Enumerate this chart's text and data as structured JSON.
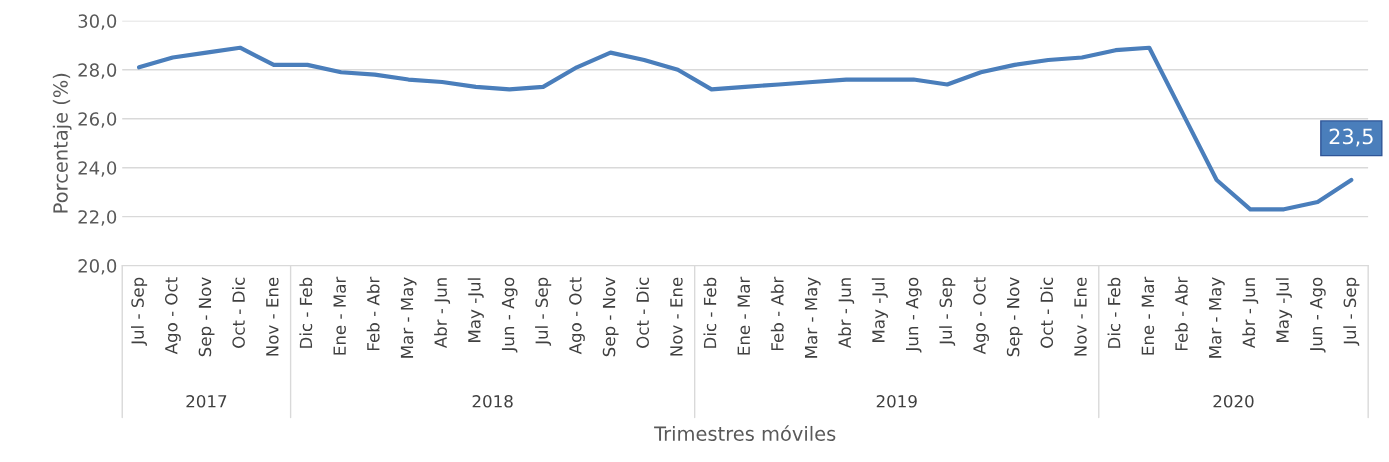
{
  "chart_data": {
    "type": "line",
    "xlabel": "Trimestres móviles",
    "ylabel": "Porcentaje (%)",
    "categories": [
      "Jul - Sep",
      "Ago - Oct",
      "Sep - Nov",
      "Oct - Dic",
      "Nov - Ene",
      "Dic - Feb",
      "Ene - Mar",
      "Feb - Abr",
      "Mar - May",
      "Abr - Jun",
      "May -Jul",
      "Jun - Ago",
      "Jul - Sep",
      "Ago - Oct",
      "Sep - Nov",
      "Oct - Dic",
      "Nov - Ene",
      "Dic - Feb",
      "Ene - Mar",
      "Feb - Abr",
      "Mar - May",
      "Abr - Jun",
      "May -Jul",
      "Jun - Ago",
      "Jul - Sep",
      "Ago - Oct",
      "Sep - Nov",
      "Oct - Dic",
      "Nov - Ene",
      "Dic - Feb",
      "Ene - Mar",
      "Feb - Abr",
      "Mar - May",
      "Abr - Jun",
      "May -Jul",
      "Jun - Ago",
      "Jul - Sep"
    ],
    "series": [
      {
        "color": "#4a7ebb",
        "values": [
          28.1,
          28.5,
          28.7,
          28.9,
          28.2,
          28.2,
          27.9,
          27.8,
          27.6,
          27.5,
          27.3,
          27.2,
          27.3,
          28.1,
          28.7,
          28.4,
          28.0,
          27.2,
          27.3,
          27.4,
          27.5,
          27.6,
          27.6,
          27.6,
          27.4,
          27.9,
          28.2,
          28.4,
          28.5,
          28.8,
          28.9,
          26.2,
          23.5,
          22.3,
          22.3,
          22.6,
          23.5
        ],
        "value_labels": [
          null,
          null,
          null,
          null,
          null,
          null,
          null,
          null,
          null,
          null,
          null,
          null,
          null,
          null,
          null,
          null,
          null,
          null,
          null,
          null,
          null,
          null,
          null,
          null,
          null,
          null,
          null,
          null,
          null,
          null,
          null,
          null,
          null,
          null,
          null,
          null,
          "23,5"
        ]
      }
    ],
    "ylim": [
      20,
      30
    ],
    "yticks": [
      {
        "value": 20,
        "label": "20,0"
      },
      {
        "value": 22,
        "label": "22,0"
      },
      {
        "value": 24,
        "label": "24,0"
      },
      {
        "value": 26,
        "label": "26,0"
      },
      {
        "value": 28,
        "label": "28,0"
      },
      {
        "value": 30,
        "label": "30,0"
      }
    ],
    "grid": "y",
    "marker": "none",
    "line_style": "solid",
    "annotations": [
      "2017",
      "2018",
      "2019",
      "2020"
    ]
  }
}
